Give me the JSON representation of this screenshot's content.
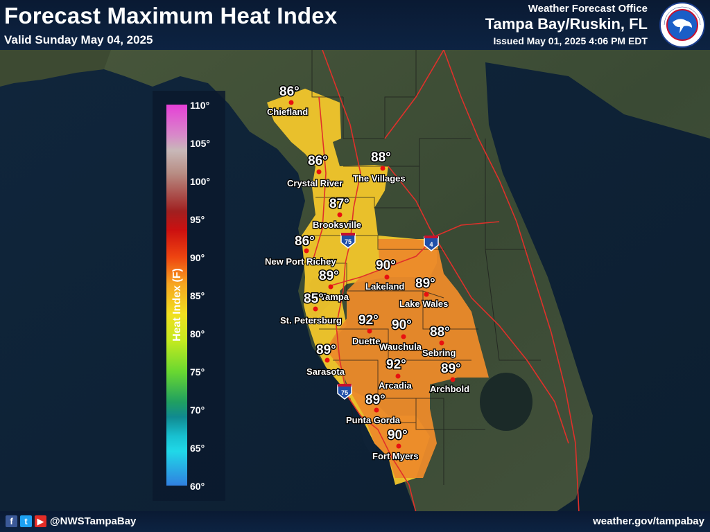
{
  "header": {
    "title": "Forecast Maximum Heat Index",
    "valid": "Valid Sunday May 04, 2025",
    "office_label": "Weather Forecast Office",
    "office_name": "Tampa Bay/Ruskin, FL",
    "issued": "Issued May 01, 2025 4:06 PM EDT",
    "logo_icon": "nws-logo-icon"
  },
  "legend": {
    "title": "Heat Index (F)",
    "ticks": [
      "110°",
      "105°",
      "100°",
      "95°",
      "90°",
      "85°",
      "80°",
      "75°",
      "70°",
      "65°",
      "60°"
    ]
  },
  "highways": [
    "75",
    "75",
    "4"
  ],
  "cities": [
    {
      "name": "Chiefland",
      "value": "86°"
    },
    {
      "name": "Crystal River",
      "value": "86°"
    },
    {
      "name": "The Villages",
      "value": "88°"
    },
    {
      "name": "Brooksville",
      "value": "87°"
    },
    {
      "name": "New Port Richey",
      "value": "86°"
    },
    {
      "name": "Lakeland",
      "value": "90°"
    },
    {
      "name": "Tampa",
      "value": "89°"
    },
    {
      "name": "Lake Wales",
      "value": "89°"
    },
    {
      "name": "St. Petersburg",
      "value": "85°"
    },
    {
      "name": "Duette",
      "value": "92°"
    },
    {
      "name": "Wauchula",
      "value": "90°"
    },
    {
      "name": "Sebring",
      "value": "88°"
    },
    {
      "name": "Sarasota",
      "value": "89°"
    },
    {
      "name": "Arcadia",
      "value": "92°"
    },
    {
      "name": "Archbold",
      "value": "89°"
    },
    {
      "name": "Punta Gorda",
      "value": "89°"
    },
    {
      "name": "Fort Myers",
      "value": "90°"
    }
  ],
  "footer": {
    "handle": "@NWSTampaBay",
    "website": "weather.gov/tampabay",
    "social_icons": [
      "facebook-icon",
      "twitter-icon",
      "youtube-icon"
    ]
  },
  "colors": {
    "header_bg": "#0a1a33",
    "ocean": "#0f2236",
    "land": "#3b4a32",
    "yellow_zone": "#f2c62b",
    "orange_zone": "#ec8a2a",
    "roads": "#e0302a",
    "city_dot": "#e81010"
  }
}
